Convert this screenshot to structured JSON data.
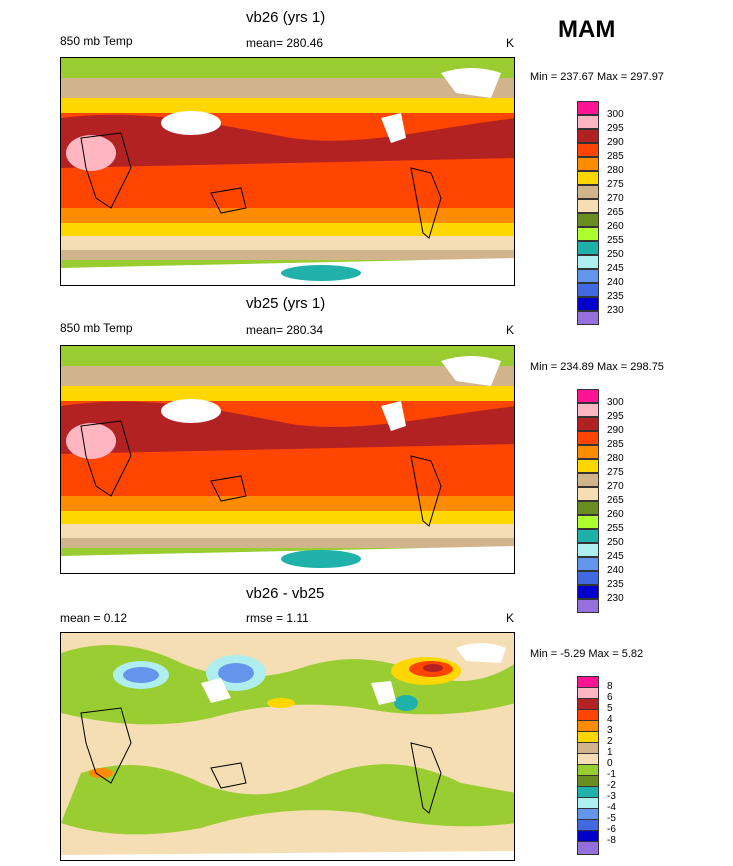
{
  "season": "MAM",
  "panels": [
    {
      "title": "vb26 (yrs 1)",
      "left_label": "850 mb Temp",
      "center_label": "mean= 280.46",
      "units": "K",
      "minmax": "Min = 237.67 Max = 297.97",
      "levels": [
        "300",
        "295",
        "290",
        "285",
        "280",
        "275",
        "270",
        "265",
        "260",
        "255",
        "250",
        "245",
        "240",
        "235",
        "230"
      ]
    },
    {
      "title": "vb25 (yrs 1)",
      "left_label": "850 mb Temp",
      "center_label": "mean= 280.34",
      "units": "K",
      "minmax": "Min = 234.89 Max = 298.75",
      "levels": [
        "300",
        "295",
        "290",
        "285",
        "280",
        "275",
        "270",
        "265",
        "260",
        "255",
        "250",
        "245",
        "240",
        "235",
        "230"
      ]
    },
    {
      "title": "vb26 - vb25",
      "left_label": "mean =   0.12",
      "center_label": "rmse =   1.11",
      "units": "K",
      "minmax": "Min =  -5.29 Max =   5.82",
      "levels": [
        "8",
        "6",
        "5",
        "4",
        "3",
        "2",
        "1",
        "0",
        "-1",
        "-2",
        "-3",
        "-4",
        "-5",
        "-6",
        "-8"
      ]
    }
  ],
  "colors": {
    "temp": [
      "#ff1493",
      "#ffb6c1",
      "#b22222",
      "#ff4500",
      "#ff8c00",
      "#ffd700",
      "#d2b48c",
      "#f5deb3",
      "#6b8e23",
      "#adff2f",
      "#20b2aa",
      "#afeeee",
      "#6495ed",
      "#4169e1",
      "#0000cd",
      "#9370db"
    ],
    "diff": [
      "#ff1493",
      "#ffb6c1",
      "#b22222",
      "#ff4500",
      "#ff8c00",
      "#ffd700",
      "#d2b48c",
      "#f5deb3",
      "#9acd32",
      "#6b8e23",
      "#20b2aa",
      "#afeeee",
      "#6495ed",
      "#4169e1",
      "#0000cd",
      "#9370db"
    ]
  }
}
